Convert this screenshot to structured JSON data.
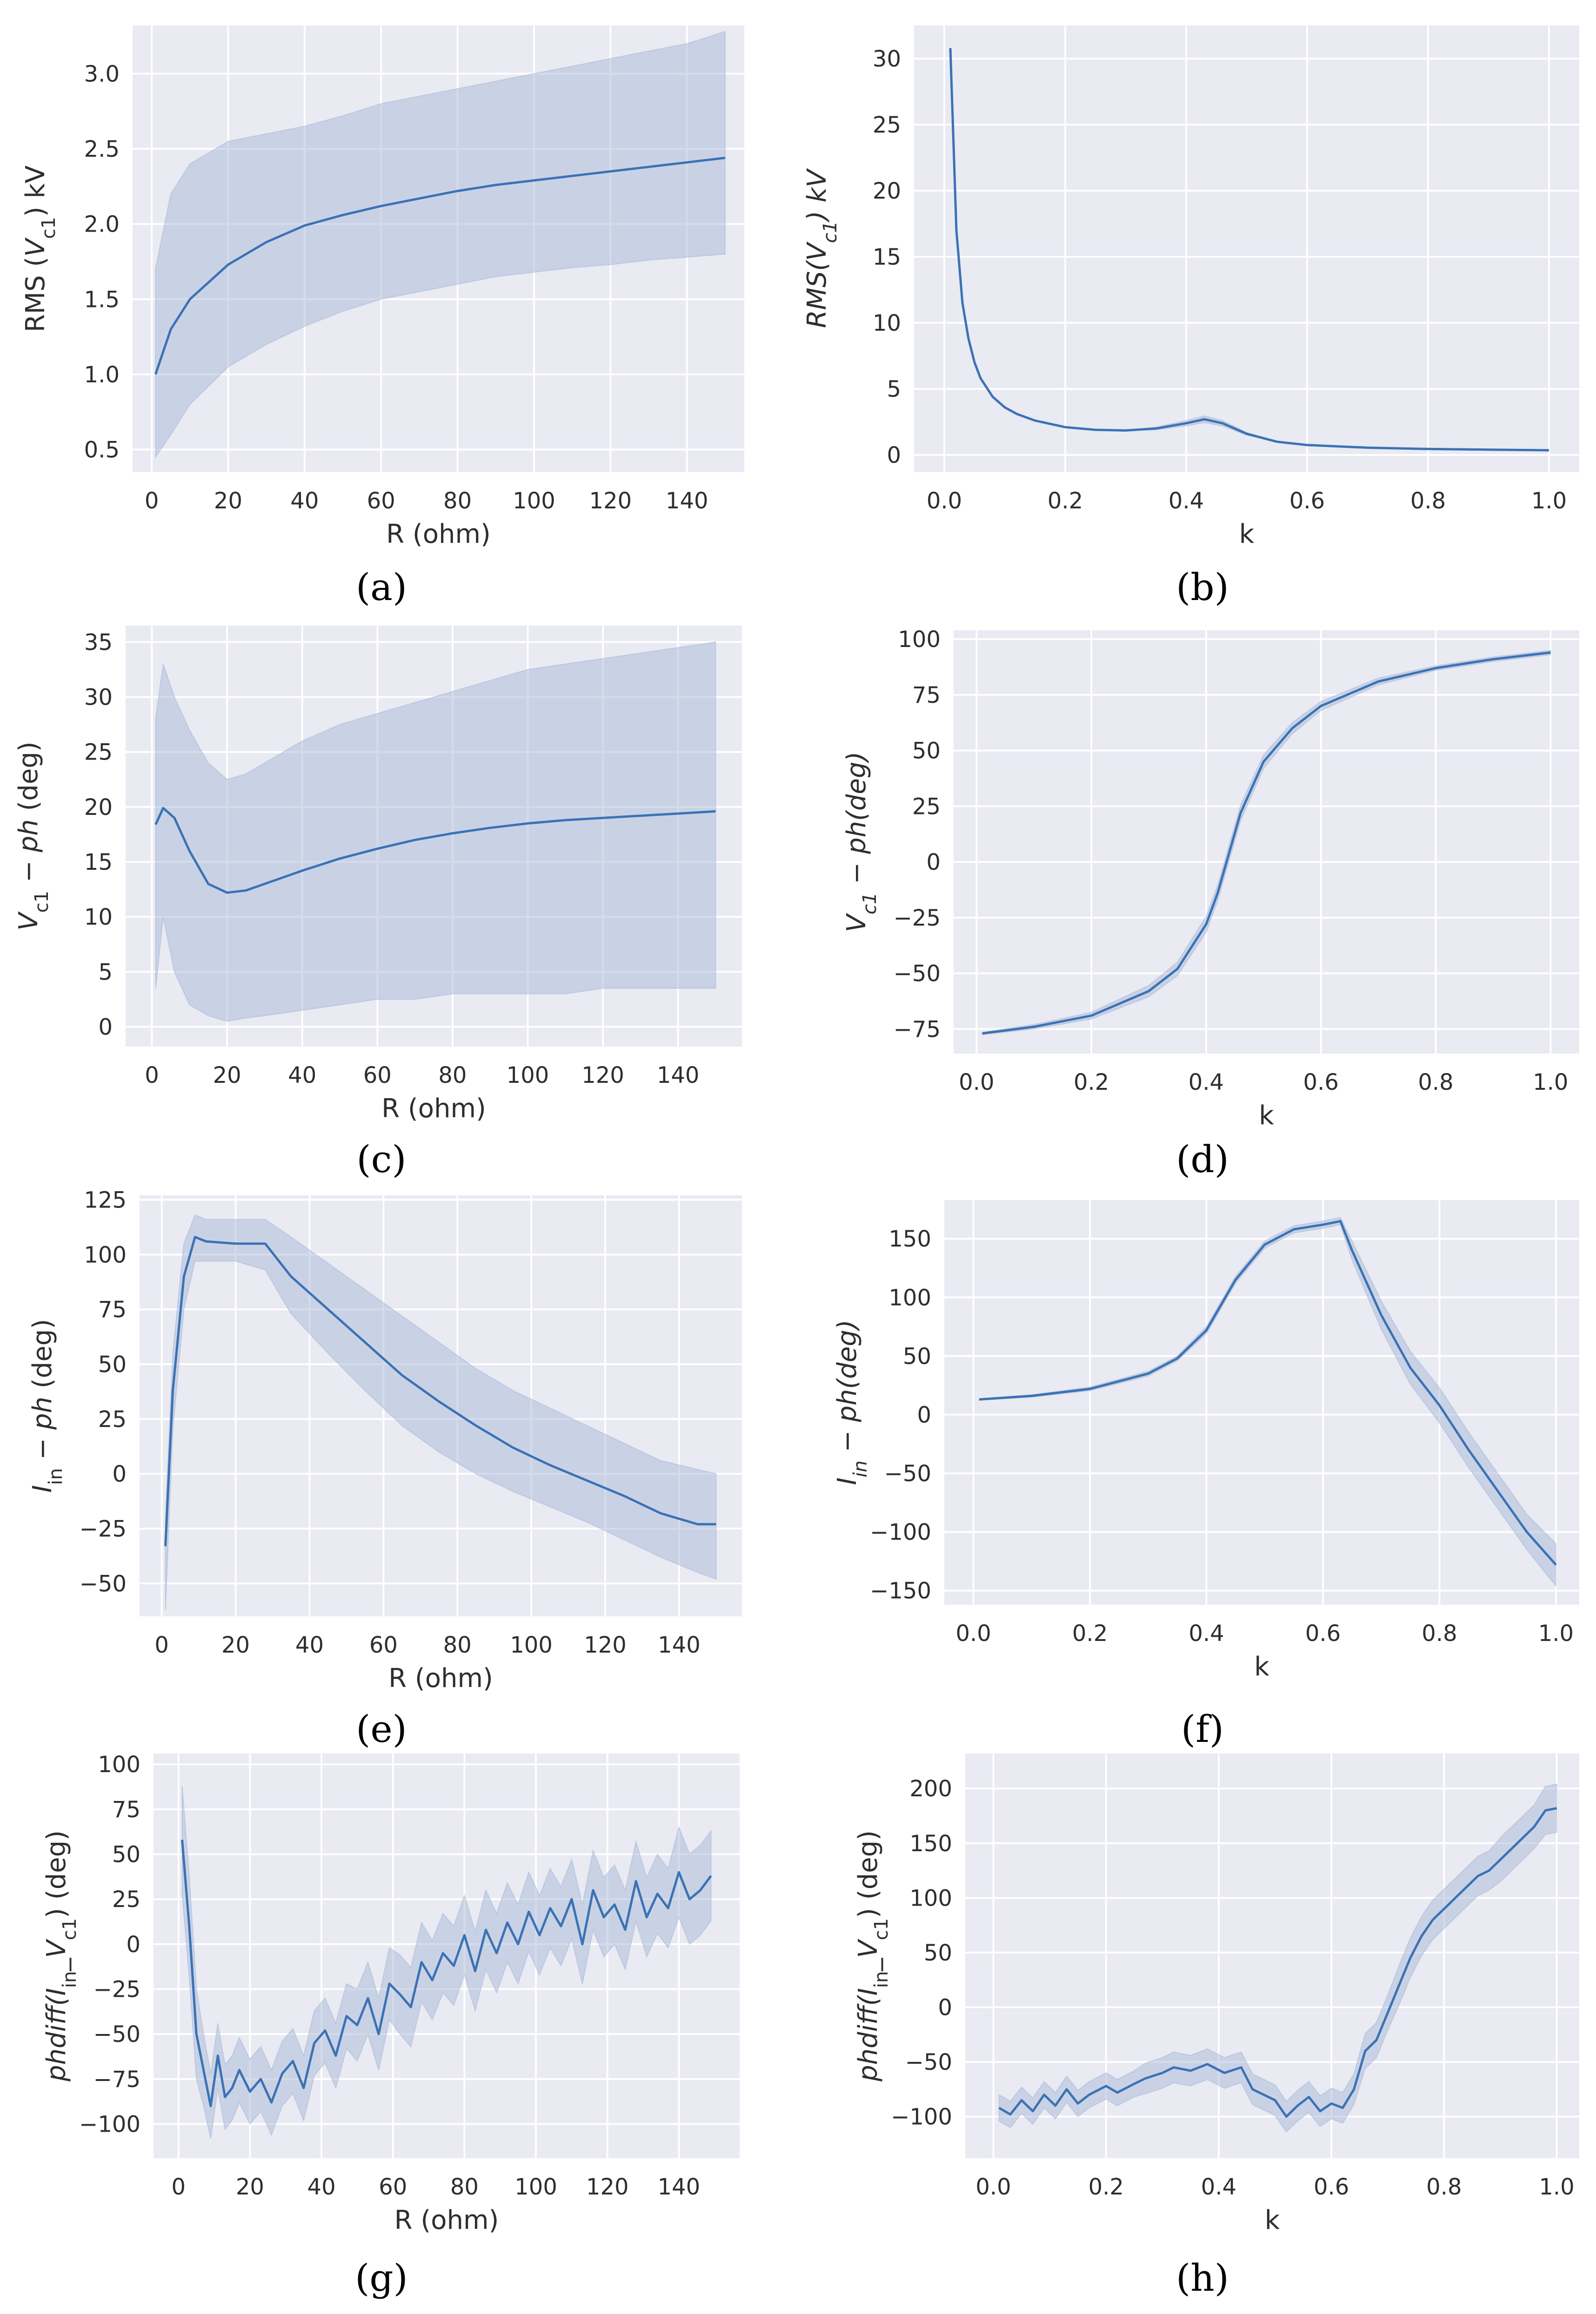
{
  "colors": {
    "panel_bg": "#e9eaf2",
    "grid": "#ffffff",
    "line": "#3b72b4",
    "band": "#aab9d8"
  },
  "chart_data": [
    {
      "id": "a",
      "type": "line",
      "label": "(a)",
      "xlabel": "R (ohm)",
      "ylabel_parts": [
        "RMS (",
        "V",
        "c1",
        ") kV"
      ],
      "xlim": [
        -5,
        155
      ],
      "ylim": [
        0.35,
        3.32
      ],
      "xticks": [
        0,
        20,
        40,
        60,
        80,
        100,
        120,
        140
      ],
      "xtick_labels": [
        "0",
        "20",
        "40",
        "60",
        "80",
        "100",
        "120",
        "140"
      ],
      "yticks": [
        0.5,
        1.0,
        1.5,
        2.0,
        2.5,
        3.0
      ],
      "ytick_labels": [
        "0.5",
        "1.0",
        "1.5",
        "2.0",
        "2.5",
        "3.0"
      ],
      "x": [
        1,
        5,
        10,
        20,
        30,
        40,
        50,
        60,
        70,
        80,
        90,
        100,
        110,
        120,
        130,
        140,
        150
      ],
      "mean": [
        1.0,
        1.3,
        1.5,
        1.73,
        1.88,
        1.99,
        2.06,
        2.12,
        2.17,
        2.22,
        2.26,
        2.29,
        2.32,
        2.35,
        2.38,
        2.41,
        2.44
      ],
      "lower": [
        0.45,
        0.6,
        0.8,
        1.05,
        1.2,
        1.32,
        1.42,
        1.5,
        1.55,
        1.6,
        1.65,
        1.68,
        1.71,
        1.73,
        1.76,
        1.78,
        1.8
      ],
      "upper": [
        1.7,
        2.2,
        2.4,
        2.55,
        2.6,
        2.65,
        2.72,
        2.8,
        2.85,
        2.9,
        2.95,
        3.0,
        3.05,
        3.1,
        3.15,
        3.2,
        3.28
      ]
    },
    {
      "id": "b",
      "type": "line",
      "label": "(b)",
      "xlabel": "k",
      "ylabel_parts": [
        "RMS(",
        "V",
        "c1",
        ") kV"
      ],
      "ylabel_italic": true,
      "xlim": [
        -0.05,
        1.05
      ],
      "ylim": [
        -1.3,
        32.5
      ],
      "xticks": [
        0.0,
        0.2,
        0.4,
        0.6,
        0.8,
        1.0
      ],
      "xtick_labels": [
        "0.0",
        "0.2",
        "0.4",
        "0.6",
        "0.8",
        "1.0"
      ],
      "yticks": [
        0,
        5,
        10,
        15,
        20,
        25,
        30
      ],
      "ytick_labels": [
        "0",
        "5",
        "10",
        "15",
        "20",
        "25",
        "30"
      ],
      "x": [
        0.01,
        0.02,
        0.03,
        0.04,
        0.05,
        0.06,
        0.08,
        0.1,
        0.12,
        0.15,
        0.2,
        0.25,
        0.3,
        0.35,
        0.4,
        0.43,
        0.46,
        0.5,
        0.55,
        0.6,
        0.7,
        0.8,
        0.9,
        1.0
      ],
      "mean": [
        30.8,
        17.0,
        11.5,
        8.8,
        7.0,
        5.8,
        4.4,
        3.6,
        3.1,
        2.6,
        2.1,
        1.9,
        1.85,
        2.0,
        2.4,
        2.7,
        2.4,
        1.6,
        1.0,
        0.75,
        0.55,
        0.45,
        0.4,
        0.35
      ],
      "band": [
        0,
        0,
        0,
        0,
        0,
        0,
        0,
        0,
        0,
        0,
        0,
        0,
        0,
        0.1,
        0.2,
        0.25,
        0.2,
        0.1,
        0,
        0,
        0,
        0,
        0,
        0
      ]
    },
    {
      "id": "c",
      "type": "line",
      "label": "(c)",
      "xlabel": "R (ohm)",
      "ylabel_parts": [
        "V",
        "c1",
        " − ph",
        " (deg)"
      ],
      "xlim": [
        -7,
        157
      ],
      "ylim": [
        -1.8,
        36.5
      ],
      "xticks": [
        0,
        20,
        40,
        60,
        80,
        100,
        120,
        140
      ],
      "xtick_labels": [
        "0",
        "20",
        "40",
        "60",
        "80",
        "100",
        "120",
        "140"
      ],
      "yticks": [
        0,
        5,
        10,
        15,
        20,
        25,
        30,
        35
      ],
      "ytick_labels": [
        "0",
        "5",
        "10",
        "15",
        "20",
        "25",
        "30",
        "35"
      ],
      "x": [
        1,
        3,
        6,
        10,
        15,
        20,
        25,
        30,
        40,
        50,
        60,
        70,
        80,
        90,
        100,
        110,
        120,
        130,
        140,
        150
      ],
      "mean": [
        18.4,
        19.9,
        19.0,
        16.0,
        13.0,
        12.2,
        12.4,
        13.0,
        14.2,
        15.3,
        16.2,
        17.0,
        17.6,
        18.1,
        18.5,
        18.8,
        19.0,
        19.2,
        19.4,
        19.6
      ],
      "lower": [
        3.5,
        10.0,
        5.0,
        2.0,
        1.0,
        0.5,
        0.8,
        1.0,
        1.5,
        2.0,
        2.5,
        2.5,
        3.0,
        3.0,
        3.0,
        3.0,
        3.5,
        3.5,
        3.5,
        3.5
      ],
      "upper": [
        28.0,
        33.0,
        30.0,
        27.0,
        24.0,
        22.5,
        23.0,
        24.0,
        26.0,
        27.5,
        28.5,
        29.5,
        30.5,
        31.5,
        32.5,
        33.0,
        33.5,
        34.0,
        34.5,
        35.0
      ]
    },
    {
      "id": "d",
      "type": "line",
      "label": "(d)",
      "xlabel": "k",
      "ylabel_parts": [
        "V",
        "c1",
        " − ph",
        "(deg)"
      ],
      "ylabel_italic": true,
      "xlim": [
        -0.04,
        1.05
      ],
      "ylim": [
        -86,
        104
      ],
      "xticks": [
        0.0,
        0.2,
        0.4,
        0.6,
        0.8,
        1.0
      ],
      "xtick_labels": [
        "0.0",
        "0.2",
        "0.4",
        "0.6",
        "0.8",
        "1.0"
      ],
      "yticks": [
        -75,
        -50,
        -25,
        0,
        25,
        50,
        75,
        100
      ],
      "ytick_labels": [
        "−75",
        "−50",
        "−25",
        "0",
        "25",
        "50",
        "75",
        "100"
      ],
      "x": [
        0.01,
        0.1,
        0.2,
        0.3,
        0.35,
        0.4,
        0.42,
        0.44,
        0.46,
        0.5,
        0.55,
        0.6,
        0.7,
        0.8,
        0.9,
        1.0
      ],
      "mean": [
        -77,
        -74,
        -69,
        -58,
        -48,
        -28,
        -14,
        4,
        22,
        45,
        60,
        70,
        81,
        87,
        91,
        94
      ],
      "band": [
        0.5,
        1,
        1.5,
        2.5,
        3,
        3.5,
        3.5,
        3.5,
        3.5,
        3,
        2.5,
        2,
        1.5,
        1,
        1,
        1
      ]
    },
    {
      "id": "e",
      "type": "line",
      "label": "(e)",
      "xlabel": "R (ohm)",
      "ylabel_parts": [
        "I",
        "in",
        " − ph",
        " (deg)"
      ],
      "xlim": [
        -6,
        157
      ],
      "ylim": [
        -65,
        127
      ],
      "xticks": [
        0,
        20,
        40,
        60,
        80,
        100,
        120,
        140
      ],
      "xtick_labels": [
        "0",
        "20",
        "40",
        "60",
        "80",
        "100",
        "120",
        "140"
      ],
      "yticks": [
        -50,
        -25,
        0,
        25,
        50,
        75,
        100,
        125
      ],
      "ytick_labels": [
        "−50",
        "−25",
        "0",
        "25",
        "50",
        "75",
        "100",
        "125"
      ],
      "x": [
        1,
        3,
        6,
        9,
        12,
        20,
        28,
        35,
        45,
        55,
        65,
        75,
        85,
        95,
        105,
        115,
        125,
        135,
        145,
        150
      ],
      "mean": [
        -33,
        38,
        90,
        108,
        106,
        105,
        105,
        90,
        75,
        60,
        45,
        33,
        22,
        12,
        4,
        -3,
        -10,
        -18,
        -23,
        -23
      ],
      "lower": [
        -62,
        20,
        75,
        97,
        97,
        97,
        93,
        73,
        55,
        38,
        22,
        10,
        0,
        -8,
        -15,
        -22,
        -30,
        -38,
        -45,
        -48
      ],
      "upper": [
        -20,
        55,
        105,
        118,
        116,
        116,
        116,
        108,
        96,
        84,
        72,
        60,
        48,
        38,
        30,
        22,
        14,
        6,
        2,
        0
      ]
    },
    {
      "id": "f",
      "type": "line",
      "label": "(f)",
      "xlabel": "k",
      "ylabel_parts": [
        "I",
        "in",
        " − ph",
        "(deg)"
      ],
      "ylabel_italic": true,
      "xlim": [
        -0.05,
        1.04
      ],
      "ylim": [
        -162,
        183
      ],
      "xticks": [
        0.0,
        0.2,
        0.4,
        0.6,
        0.8,
        1.0
      ],
      "xtick_labels": [
        "0.0",
        "0.2",
        "0.4",
        "0.6",
        "0.8",
        "1.0"
      ],
      "yticks": [
        -150,
        -100,
        -50,
        0,
        50,
        100,
        150
      ],
      "ytick_labels": [
        "−150",
        "−100",
        "−50",
        "0",
        "50",
        "100",
        "150"
      ],
      "x": [
        0.01,
        0.1,
        0.2,
        0.3,
        0.35,
        0.4,
        0.45,
        0.5,
        0.55,
        0.6,
        0.63,
        0.65,
        0.7,
        0.75,
        0.8,
        0.85,
        0.9,
        0.95,
        1.0
      ],
      "mean": [
        13,
        16,
        22,
        35,
        48,
        72,
        115,
        145,
        158,
        162,
        165,
        140,
        85,
        40,
        8,
        -30,
        -65,
        -100,
        -128
      ],
      "band": [
        0.5,
        1,
        1.5,
        2,
        2,
        3,
        3,
        3,
        3,
        3,
        3,
        8,
        12,
        14,
        15,
        15,
        15,
        15,
        18
      ]
    },
    {
      "id": "g",
      "type": "line",
      "label": "(g)",
      "xlabel": "R (ohm)",
      "ylabel_parts": [
        "phdiff(",
        "I",
        "in",
        "_",
        "V",
        "c1",
        ") (deg)"
      ],
      "xlim": [
        -7,
        157
      ],
      "ylim": [
        -119,
        106
      ],
      "xticks": [
        0,
        20,
        40,
        60,
        80,
        100,
        120,
        140
      ],
      "xtick_labels": [
        "0",
        "20",
        "40",
        "60",
        "80",
        "100",
        "120",
        "140"
      ],
      "yticks": [
        -100,
        -75,
        -50,
        -25,
        0,
        25,
        50,
        75,
        100
      ],
      "ytick_labels": [
        "−100",
        "−75",
        "−50",
        "−25",
        "0",
        "25",
        "50",
        "75",
        "100"
      ],
      "x": [
        1,
        3,
        5,
        7,
        9,
        11,
        13,
        15,
        17,
        20,
        23,
        26,
        29,
        32,
        35,
        38,
        41,
        44,
        47,
        50,
        53,
        56,
        59,
        62,
        65,
        68,
        71,
        74,
        77,
        80,
        83,
        86,
        89,
        92,
        95,
        98,
        101,
        104,
        107,
        110,
        113,
        116,
        119,
        122,
        125,
        128,
        131,
        134,
        137,
        140,
        143,
        146,
        149
      ],
      "mean": [
        58,
        10,
        -50,
        -70,
        -90,
        -62,
        -85,
        -80,
        -70,
        -82,
        -75,
        -88,
        -72,
        -65,
        -80,
        -55,
        -48,
        -62,
        -40,
        -45,
        -30,
        -50,
        -22,
        -28,
        -35,
        -10,
        -20,
        -5,
        -12,
        5,
        -15,
        8,
        -5,
        12,
        0,
        18,
        5,
        20,
        10,
        25,
        0,
        30,
        15,
        22,
        8,
        35,
        15,
        28,
        20,
        40,
        25,
        30,
        38
      ],
      "band": [
        30,
        28,
        25,
        20,
        18,
        18,
        18,
        18,
        18,
        18,
        18,
        18,
        18,
        18,
        18,
        18,
        18,
        18,
        18,
        20,
        20,
        20,
        20,
        22,
        22,
        22,
        22,
        22,
        22,
        22,
        22,
        22,
        22,
        22,
        22,
        22,
        22,
        22,
        22,
        22,
        22,
        22,
        22,
        22,
        22,
        22,
        22,
        22,
        22,
        25,
        25,
        25,
        25
      ]
    },
    {
      "id": "h",
      "type": "line",
      "label": "(h)",
      "xlabel": "k",
      "ylabel_parts": [
        "phdiff(",
        "I",
        "in",
        "_",
        "V",
        "c1",
        ") (deg)"
      ],
      "xlim": [
        -0.05,
        1.04
      ],
      "ylim": [
        -138,
        232
      ],
      "xticks": [
        0.0,
        0.2,
        0.4,
        0.6,
        0.8,
        1.0
      ],
      "xtick_labels": [
        "0.0",
        "0.2",
        "0.4",
        "0.6",
        "0.8",
        "1.0"
      ],
      "yticks": [
        -100,
        -50,
        0,
        50,
        100,
        150,
        200
      ],
      "ytick_labels": [
        "−100",
        "−50",
        "0",
        "50",
        "100",
        "150",
        "200"
      ],
      "x": [
        0.01,
        0.03,
        0.05,
        0.07,
        0.09,
        0.11,
        0.13,
        0.15,
        0.17,
        0.2,
        0.22,
        0.25,
        0.27,
        0.3,
        0.32,
        0.35,
        0.38,
        0.41,
        0.44,
        0.46,
        0.48,
        0.5,
        0.52,
        0.54,
        0.56,
        0.58,
        0.6,
        0.62,
        0.64,
        0.66,
        0.68,
        0.7,
        0.72,
        0.74,
        0.76,
        0.78,
        0.8,
        0.82,
        0.84,
        0.86,
        0.88,
        0.9,
        0.92,
        0.94,
        0.96,
        0.98,
        1.0
      ],
      "mean": [
        -92,
        -98,
        -85,
        -95,
        -80,
        -90,
        -75,
        -88,
        -80,
        -72,
        -78,
        -70,
        -65,
        -60,
        -55,
        -58,
        -52,
        -60,
        -55,
        -75,
        -80,
        -85,
        -100,
        -90,
        -82,
        -95,
        -88,
        -92,
        -75,
        -40,
        -30,
        -5,
        20,
        45,
        65,
        80,
        90,
        100,
        110,
        120,
        125,
        135,
        145,
        155,
        165,
        180,
        182
      ],
      "band": [
        12,
        12,
        12,
        12,
        12,
        12,
        12,
        12,
        12,
        12,
        12,
        12,
        14,
        14,
        14,
        14,
        14,
        14,
        14,
        14,
        14,
        14,
        14,
        14,
        14,
        14,
        14,
        14,
        14,
        16,
        16,
        16,
        18,
        18,
        18,
        18,
        18,
        18,
        18,
        18,
        18,
        20,
        20,
        20,
        20,
        22,
        22
      ]
    }
  ]
}
